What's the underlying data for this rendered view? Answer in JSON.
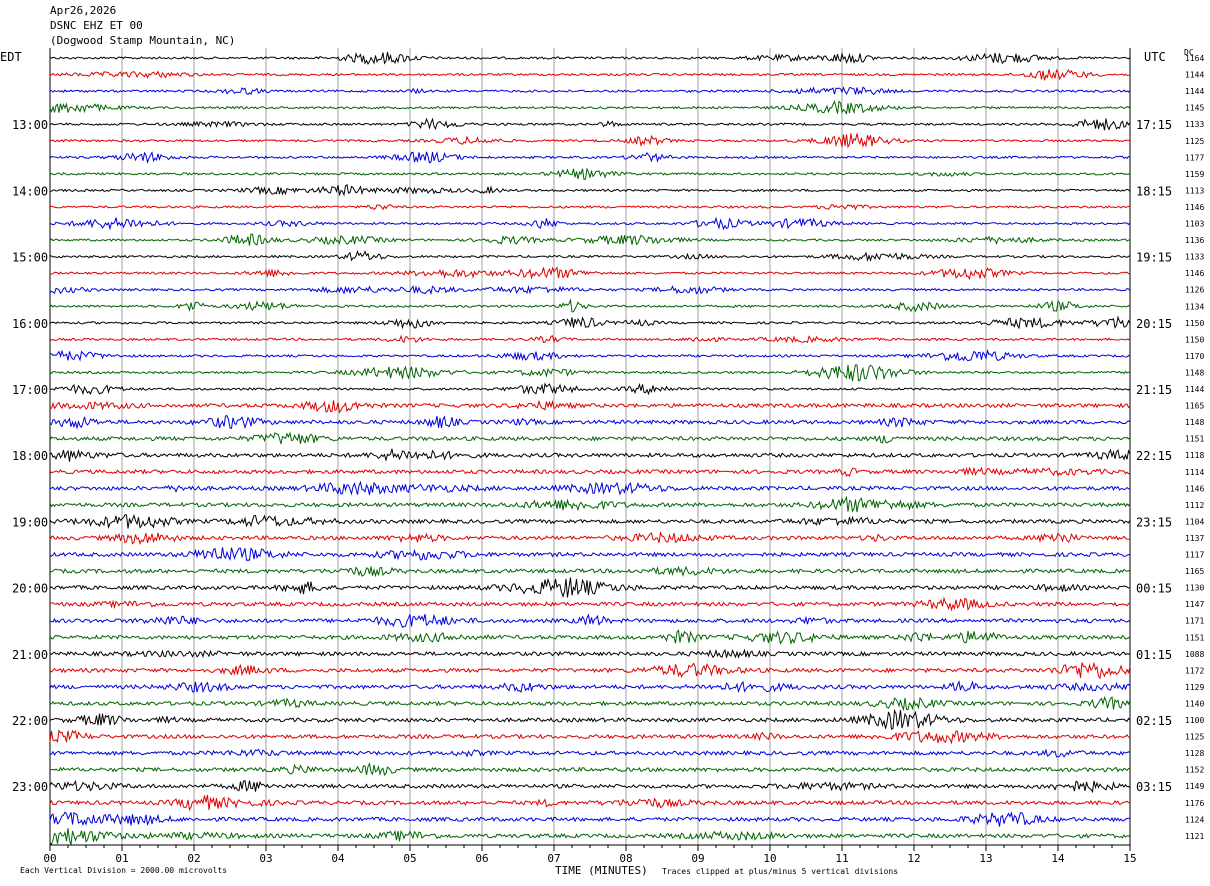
{
  "header": {
    "date": "Apr26,2026",
    "station": "DSNC EHZ ET 00",
    "location": "(Dogwood Stamp Mountain, NC)"
  },
  "left_axis_label": "EDT",
  "right_axis_label": "UTC",
  "dc_label": "DC",
  "footer": {
    "vertical_division": "Each Vertical Division = 2000.00 microvolts",
    "xlabel": "TIME (MINUTES)",
    "clip_note": "Traces clipped at plus/minus 5 vertical divisions"
  },
  "colors": {
    "black": "#000000",
    "red": "#dd0000",
    "blue": "#0000dd",
    "green": "#006400"
  },
  "chart_data": {
    "type": "line",
    "title": "Apr26,2026",
    "xlabel": "TIME (MINUTES)",
    "xlim": [
      0,
      15
    ],
    "x_ticks": [
      "00",
      "01",
      "02",
      "03",
      "04",
      "05",
      "06",
      "07",
      "08",
      "09",
      "10",
      "11",
      "12",
      "13",
      "14",
      "15"
    ],
    "left_hour_labels": [
      "13:00",
      "14:00",
      "15:00",
      "16:00",
      "17:00",
      "18:00",
      "19:00",
      "20:00",
      "21:00",
      "22:00",
      "23:00"
    ],
    "right_hour_labels": [
      "17:15",
      "18:15",
      "19:15",
      "20:15",
      "21:15",
      "22:15",
      "23:15",
      "00:15",
      "01:15",
      "02:15",
      "03:15"
    ],
    "first_labeled_row": 4,
    "rows_per_hour": 4,
    "trace_color_cycle": [
      "black",
      "red",
      "blue",
      "green"
    ],
    "dc_offsets": [
      1164,
      1144,
      1144,
      1145,
      1133,
      1125,
      1177,
      1159,
      1113,
      1146,
      1103,
      1136,
      1133,
      1146,
      1126,
      1134,
      1150,
      1150,
      1170,
      1148,
      1144,
      1165,
      1148,
      1151,
      1118,
      1114,
      1146,
      1112,
      1104,
      1137,
      1117,
      1165,
      1130,
      1147,
      1171,
      1151,
      1088,
      1172,
      1129,
      1140,
      1100,
      1125,
      1128,
      1152,
      1149,
      1176,
      1124,
      1121
    ],
    "grid": "vertical"
  }
}
